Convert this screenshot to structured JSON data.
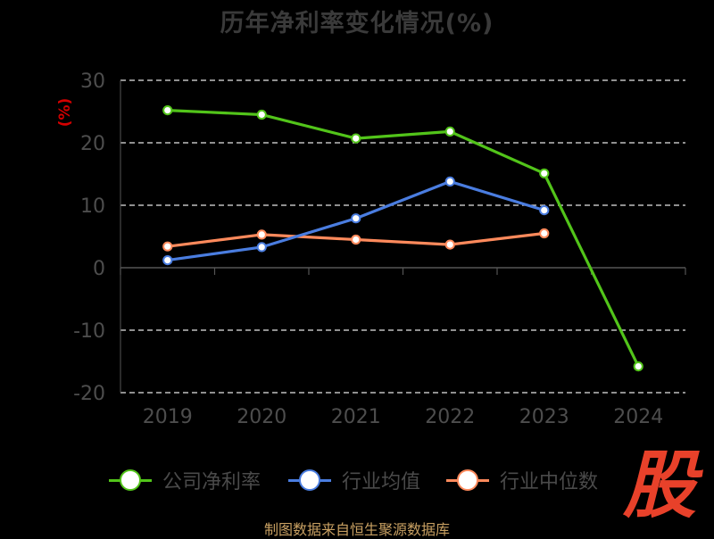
{
  "title": "历年净利率变化情况(%)",
  "source": "制图数据来自恒生聚源数据库",
  "logo_text": "股",
  "colors": {
    "background": "#000000",
    "grid": "#ffffff",
    "axis": "#555555",
    "tick_label": "#4d4d4d",
    "unit_label": "#d40000"
  },
  "chart_data": {
    "type": "line",
    "title": "历年净利率变化情况(%)",
    "ylabel": "(%)",
    "xlabel": "",
    "categories": [
      "2019",
      "2020",
      "2021",
      "2022",
      "2023",
      "2024"
    ],
    "ylim": [
      -20,
      30
    ],
    "yticks": [
      30,
      20,
      10,
      0,
      -10,
      -20
    ],
    "ytick_labels": [
      "30",
      "20",
      "10",
      "0",
      "-10",
      "-20"
    ],
    "grid": true,
    "legend_position": "bottom",
    "series": [
      {
        "name": "公司净利率",
        "color": "#52c41a",
        "values": [
          25.2,
          24.5,
          20.7,
          21.8,
          15.1,
          -15.8
        ]
      },
      {
        "name": "行业均值",
        "color": "#4a7de0",
        "values": [
          1.2,
          3.3,
          7.9,
          13.8,
          9.2,
          null
        ]
      },
      {
        "name": "行业中位数",
        "color": "#ff8a5c",
        "values": [
          3.4,
          5.3,
          4.5,
          3.7,
          5.5,
          null
        ]
      }
    ]
  }
}
